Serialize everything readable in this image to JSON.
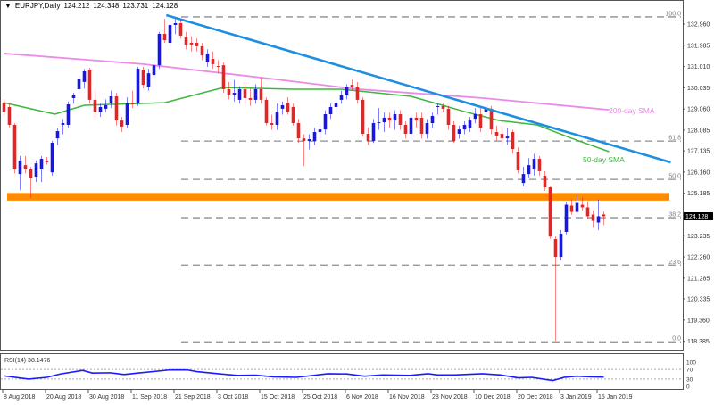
{
  "header": {
    "symbol": "EURJPY,Daily",
    "open": "124.212",
    "high": "124.348",
    "low": "123.731",
    "close": "124.128",
    "arrow": "▼"
  },
  "colors": {
    "bull": "#1515f0",
    "bear": "#f02020",
    "trendline": "#1e8fe0",
    "sma200": "#ea8be8",
    "sma50": "#3cb83c",
    "zone": "#ff8c00",
    "fib": "#8a8f94",
    "rsi": "#1a1aff"
  },
  "chart_data": {
    "type": "candlestick",
    "title": "EURJPY,Daily",
    "ylim": [
      118.385,
      132.96
    ],
    "y_ticks": [
      "132.960",
      "131.985",
      "131.010",
      "130.035",
      "129.060",
      "128.085",
      "127.135",
      "126.160",
      "125.185",
      "123.235",
      "122.260",
      "121.285",
      "120.335",
      "119.360",
      "118.385"
    ],
    "y_tick_values": [
      132.96,
      131.985,
      131.01,
      130.035,
      129.06,
      128.085,
      127.135,
      126.16,
      125.185,
      123.235,
      122.26,
      121.285,
      120.335,
      119.36,
      118.385
    ],
    "current_price": {
      "value": 124.128,
      "label": "124.128"
    },
    "x_labels": [
      {
        "i": 0,
        "label": "8 Aug 2018"
      },
      {
        "i": 8,
        "label": "20 Aug 2018"
      },
      {
        "i": 16,
        "label": "30 Aug 2018"
      },
      {
        "i": 24,
        "label": "11 Sep 2018"
      },
      {
        "i": 32,
        "label": "21 Sep 2018"
      },
      {
        "i": 40,
        "label": "3 Oct 2018"
      },
      {
        "i": 48,
        "label": "15 Oct 2018"
      },
      {
        "i": 56,
        "label": "25 Oct 2018"
      },
      {
        "i": 64,
        "label": "6 Nov 2018"
      },
      {
        "i": 72,
        "label": "16 Nov 2018"
      },
      {
        "i": 80,
        "label": "28 Nov 2018"
      },
      {
        "i": 88,
        "label": "10 Dec 2018"
      },
      {
        "i": 96,
        "label": "20 Dec 2018"
      },
      {
        "i": 104,
        "label": "3 Jan 2019"
      },
      {
        "i": 111,
        "label": "15 Jan 2019"
      }
    ],
    "ohlc": [
      [
        129.35,
        129.5,
        128.8,
        128.94
      ],
      [
        129.15,
        129.3,
        128.2,
        128.33
      ],
      [
        128.33,
        128.4,
        126.1,
        126.28
      ],
      [
        126.07,
        126.9,
        125.34,
        126.69
      ],
      [
        126.48,
        126.9,
        126.1,
        126.28
      ],
      [
        126.28,
        126.4,
        124.97,
        125.87
      ],
      [
        125.95,
        126.7,
        125.7,
        126.56
      ],
      [
        126.28,
        126.9,
        125.7,
        126.77
      ],
      [
        126.69,
        126.85,
        126.5,
        126.61
      ],
      [
        126.15,
        127.6,
        126.0,
        127.51
      ],
      [
        127.71,
        128.2,
        127.4,
        128.04
      ],
      [
        128.33,
        128.6,
        127.9,
        128.41
      ],
      [
        128.33,
        129.4,
        128.2,
        129.27
      ],
      [
        129.56,
        129.8,
        129.3,
        129.68
      ],
      [
        129.97,
        130.6,
        129.8,
        130.46
      ],
      [
        130.3,
        130.9,
        130.0,
        130.79
      ],
      [
        130.87,
        130.95,
        129.3,
        129.48
      ],
      [
        129.48,
        129.9,
        128.7,
        128.94
      ],
      [
        128.94,
        129.3,
        128.7,
        129.15
      ],
      [
        129.07,
        129.5,
        128.9,
        129.23
      ],
      [
        129.35,
        129.9,
        129.1,
        129.64
      ],
      [
        129.64,
        129.8,
        128.3,
        128.53
      ],
      [
        128.53,
        128.7,
        128.0,
        128.25
      ],
      [
        128.33,
        129.6,
        128.2,
        129.31
      ],
      [
        129.35,
        129.9,
        129.1,
        129.27
      ],
      [
        129.31,
        131.0,
        129.2,
        130.91
      ],
      [
        130.87,
        131.0,
        130.0,
        130.17
      ],
      [
        130.09,
        130.9,
        129.9,
        130.7
      ],
      [
        130.62,
        131.4,
        130.5,
        131.07
      ],
      [
        131.07,
        132.6,
        130.9,
        132.51
      ],
      [
        132.51,
        133.2,
        132.1,
        132.22
      ],
      [
        132.1,
        133.1,
        131.9,
        132.92
      ],
      [
        132.92,
        133.2,
        132.5,
        133.0
      ],
      [
        133.0,
        133.2,
        132.3,
        132.43
      ],
      [
        132.35,
        132.6,
        131.8,
        132.02
      ],
      [
        132.1,
        132.4,
        131.7,
        132.02
      ],
      [
        132.1,
        132.3,
        131.7,
        131.94
      ],
      [
        131.94,
        132.1,
        131.3,
        131.52
      ],
      [
        131.2,
        131.8,
        131.0,
        131.61
      ],
      [
        131.36,
        131.7,
        130.9,
        131.12
      ],
      [
        131.03,
        131.3,
        130.7,
        130.99
      ],
      [
        131.07,
        131.2,
        129.8,
        129.97
      ],
      [
        129.97,
        130.3,
        129.5,
        129.72
      ],
      [
        129.72,
        130.4,
        129.4,
        129.8
      ],
      [
        129.48,
        130.1,
        129.3,
        129.97
      ],
      [
        129.97,
        130.3,
        129.3,
        129.56
      ],
      [
        129.56,
        130.0,
        129.2,
        129.48
      ],
      [
        129.48,
        130.2,
        129.3,
        129.97
      ],
      [
        129.97,
        130.5,
        129.3,
        129.48
      ],
      [
        129.48,
        129.6,
        128.3,
        128.41
      ],
      [
        128.41,
        128.8,
        128.1,
        128.33
      ],
      [
        128.33,
        129.3,
        128.1,
        128.94
      ],
      [
        129.07,
        129.4,
        128.8,
        129.23
      ],
      [
        129.35,
        129.6,
        128.8,
        128.94
      ],
      [
        129.15,
        129.3,
        128.3,
        128.41
      ],
      [
        128.41,
        128.6,
        127.5,
        127.71
      ],
      [
        127.71,
        127.9,
        126.44,
        127.59
      ],
      [
        127.59,
        127.9,
        127.2,
        127.67
      ],
      [
        127.59,
        128.2,
        127.4,
        128.0
      ],
      [
        128.0,
        128.4,
        127.7,
        128.12
      ],
      [
        128.12,
        129.0,
        127.9,
        128.82
      ],
      [
        128.82,
        129.3,
        128.6,
        129.15
      ],
      [
        129.15,
        129.5,
        128.9,
        129.35
      ],
      [
        129.48,
        129.9,
        129.3,
        129.68
      ],
      [
        129.68,
        130.2,
        129.5,
        130.09
      ],
      [
        130.17,
        130.4,
        129.9,
        130.05
      ],
      [
        130.05,
        130.3,
        129.3,
        129.48
      ],
      [
        129.48,
        129.6,
        127.8,
        127.92
      ],
      [
        127.92,
        128.2,
        127.4,
        127.59
      ],
      [
        127.59,
        128.6,
        127.5,
        128.41
      ],
      [
        128.41,
        129.1,
        128.1,
        128.45
      ],
      [
        128.45,
        128.9,
        128.0,
        128.66
      ],
      [
        128.66,
        128.9,
        128.2,
        128.53
      ],
      [
        128.53,
        129.0,
        128.1,
        128.82
      ],
      [
        128.82,
        129.0,
        128.1,
        128.33
      ],
      [
        128.33,
        128.5,
        127.7,
        127.92
      ],
      [
        127.92,
        128.8,
        127.7,
        128.66
      ],
      [
        128.66,
        128.9,
        128.2,
        128.53
      ],
      [
        128.66,
        128.9,
        127.7,
        127.92
      ],
      [
        127.92,
        128.6,
        127.7,
        128.41
      ],
      [
        128.41,
        128.9,
        128.2,
        128.74
      ],
      [
        129.15,
        129.3,
        128.8,
        129.19
      ],
      [
        129.19,
        129.3,
        128.9,
        129.07
      ],
      [
        129.07,
        129.2,
        128.1,
        128.33
      ],
      [
        128.33,
        128.5,
        127.5,
        127.59
      ],
      [
        127.92,
        128.3,
        127.7,
        128.12
      ],
      [
        128.12,
        128.5,
        127.9,
        128.33
      ],
      [
        128.2,
        128.7,
        128.0,
        128.53
      ],
      [
        128.61,
        129.1,
        128.4,
        128.82
      ],
      [
        128.82,
        129.2,
        128.0,
        128.2
      ],
      [
        128.94,
        129.2,
        128.8,
        129.07
      ],
      [
        129.07,
        129.2,
        127.9,
        128.12
      ],
      [
        128.0,
        128.3,
        127.6,
        127.84
      ],
      [
        127.92,
        128.3,
        127.5,
        127.71
      ],
      [
        127.71,
        128.2,
        127.4,
        127.79
      ],
      [
        128.0,
        128.1,
        127.0,
        127.22
      ],
      [
        127.1,
        127.3,
        126.1,
        126.24
      ],
      [
        125.66,
        126.4,
        125.5,
        126.07
      ],
      [
        126.07,
        126.8,
        125.9,
        126.48
      ],
      [
        126.28,
        127.0,
        126.0,
        126.77
      ],
      [
        126.77,
        126.9,
        126.0,
        126.2
      ],
      [
        125.99,
        126.2,
        125.3,
        125.46
      ],
      [
        125.46,
        125.5,
        123.1,
        123.2
      ],
      [
        123.08,
        123.2,
        118.4,
        122.26
      ],
      [
        122.26,
        123.5,
        122.1,
        123.33
      ],
      [
        123.41,
        124.8,
        123.3,
        124.66
      ],
      [
        124.62,
        124.9,
        124.2,
        124.33
      ],
      [
        124.33,
        125.1,
        124.2,
        124.74
      ],
      [
        124.66,
        125.0,
        124.4,
        124.54
      ],
      [
        124.54,
        124.8,
        124.0,
        124.13
      ],
      [
        124.21,
        124.4,
        123.6,
        123.92
      ],
      [
        123.84,
        124.9,
        123.5,
        124.13
      ],
      [
        124.212,
        124.348,
        123.731,
        124.128
      ]
    ],
    "sma200": {
      "label": "200-day SMA",
      "points": [
        [
          0,
          131.61
        ],
        [
          26,
          131.12
        ],
        [
          49.5,
          130.46
        ],
        [
          66,
          129.97
        ],
        [
          89.5,
          129.56
        ],
        [
          113,
          129.02
        ]
      ]
    },
    "sma50": {
      "label": "50-day SMA",
      "points": [
        [
          0,
          129.35
        ],
        [
          9.5,
          128.82
        ],
        [
          15,
          129.23
        ],
        [
          30,
          129.35
        ],
        [
          41,
          130.05
        ],
        [
          54,
          129.97
        ],
        [
          63,
          129.97
        ],
        [
          76,
          129.64
        ],
        [
          86,
          128.94
        ],
        [
          92.5,
          128.53
        ],
        [
          99.5,
          128.33
        ],
        [
          106,
          127.71
        ],
        [
          113,
          127.1
        ]
      ]
    },
    "trendline": {
      "points": [
        [
          30.3,
          133.37
        ],
        [
          124.5,
          126.61
        ]
      ]
    },
    "resistance_zone": [
      124.85,
      125.2
    ],
    "fibonacci": {
      "low": 118.36,
      "high": 133.29,
      "levels": [
        {
          "ratio": 1.0,
          "label": "100.0"
        },
        {
          "ratio": 0.618,
          "label": "61.8"
        },
        {
          "ratio": 0.5,
          "label": "50.0"
        },
        {
          "ratio": 0.382,
          "label": "38.2"
        },
        {
          "ratio": 0.236,
          "label": "23.6"
        },
        {
          "ratio": 0.0,
          "label": "0.0"
        }
      ]
    },
    "rsi": {
      "label": "RSI(14) 38.1476",
      "levels": [
        100,
        70,
        30,
        0
      ],
      "level_labels": [
        "100",
        "70",
        "30",
        "0"
      ],
      "points": [
        [
          0,
          43
        ],
        [
          4.6,
          30
        ],
        [
          8,
          37
        ],
        [
          10.5,
          51
        ],
        [
          14.7,
          66
        ],
        [
          16.5,
          55
        ],
        [
          19.8,
          56
        ],
        [
          22.4,
          49
        ],
        [
          25,
          55
        ],
        [
          31,
          68
        ],
        [
          34.2,
          68
        ],
        [
          36,
          61
        ],
        [
          40,
          52
        ],
        [
          43.6,
          45
        ],
        [
          47,
          46
        ],
        [
          50.3,
          39
        ],
        [
          54.6,
          37
        ],
        [
          60.5,
          52
        ],
        [
          64,
          51
        ],
        [
          67.3,
          42
        ],
        [
          70.7,
          47
        ],
        [
          75.8,
          45
        ],
        [
          79.2,
          52
        ],
        [
          80.9,
          47
        ],
        [
          84.2,
          47
        ],
        [
          89.3,
          52
        ],
        [
          92.7,
          47
        ],
        [
          96,
          35
        ],
        [
          98.6,
          37
        ],
        [
          101.2,
          28
        ],
        [
          102.5,
          24
        ],
        [
          104.6,
          37
        ],
        [
          107,
          42
        ],
        [
          109.7,
          39
        ],
        [
          112,
          38.15
        ]
      ]
    }
  }
}
